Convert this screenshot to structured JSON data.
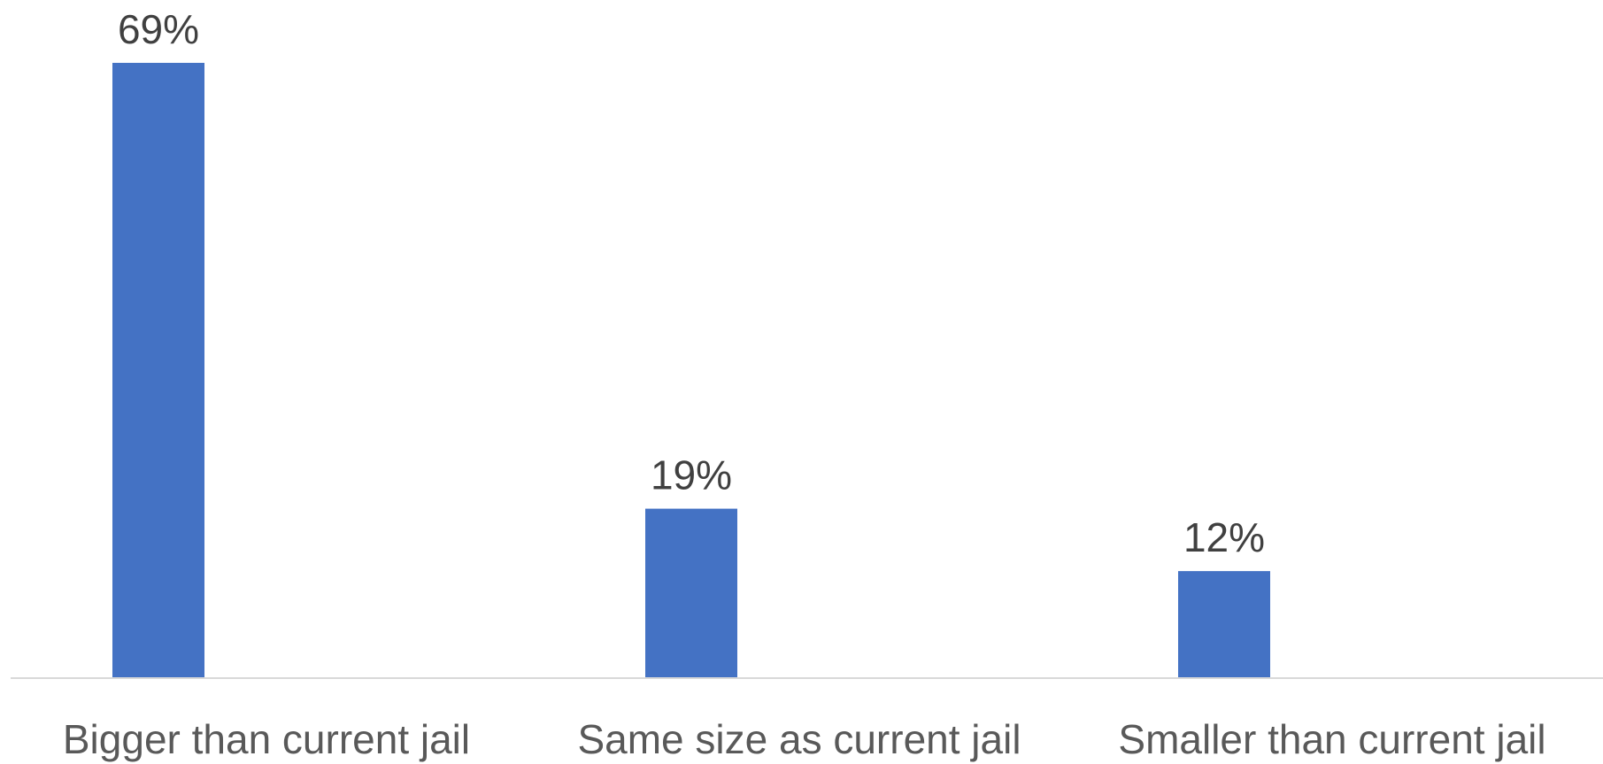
{
  "chart_data": {
    "type": "bar",
    "categories": [
      "Bigger than current jail",
      "Same size as current jail",
      "Smaller than current jail"
    ],
    "values": [
      69,
      19,
      12
    ],
    "data_labels": [
      "69%",
      "19%",
      "12%"
    ],
    "unit": "%",
    "title": "",
    "xlabel": "",
    "ylabel": "",
    "ylim": [
      0,
      69
    ],
    "grid": false,
    "legend": "none",
    "bar_color": "#4472C4",
    "axis_color": "#D9D9D9"
  }
}
